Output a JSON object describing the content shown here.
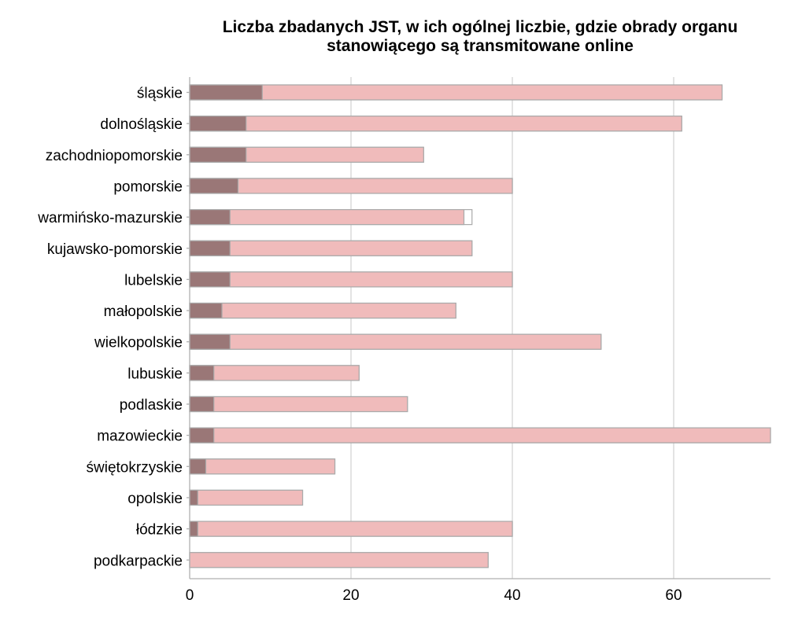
{
  "chart_data": {
    "type": "bar",
    "orientation": "horizontal",
    "stacked": false,
    "title_lines": [
      "Liczba zbadanych JST, w ich ogólnej liczbie, gdzie obrady organu",
      "stanowiącego są transmitowane online"
    ],
    "categories": [
      "śląskie",
      "dolnośląskie",
      "zachodniopomorskie",
      "pomorskie",
      "warmińsko-mazurskie",
      "kujawsko-pomorskie",
      "lubelskie",
      "małopolskie",
      "wielkopolskie",
      "lubuskie",
      "podlaskie",
      "mazowieckie",
      "świętokrzyskie",
      "opolskie",
      "łódzkie",
      "podkarpackie"
    ],
    "series": [
      {
        "role": "outline",
        "values": [
          66,
          61,
          29,
          40,
          35,
          35,
          40,
          33,
          51,
          21,
          27,
          72,
          18,
          14,
          40,
          37
        ]
      },
      {
        "role": "fill",
        "values": [
          66,
          61,
          29,
          40,
          34,
          35,
          40,
          33,
          51,
          21,
          27,
          72,
          18,
          14,
          40,
          37
        ]
      },
      {
        "role": "highlight",
        "values": [
          9,
          7,
          7,
          6,
          5,
          5,
          5,
          4,
          5,
          3,
          3,
          3,
          2,
          1,
          1,
          0
        ]
      }
    ],
    "xlim": [
      0,
      72
    ],
    "xticks": [
      "0",
      "20",
      "40",
      "60"
    ],
    "xtick_values": [
      0,
      20,
      40,
      60
    ],
    "grid": "vertical",
    "legend": "none",
    "colors": {
      "outline": "#ffffff",
      "fill": "#f0bbbb",
      "highlight": "#9a7777",
      "stroke": "#aaaaaa",
      "grid": "#d4d4d4",
      "axis": "#b0b0b0"
    }
  }
}
